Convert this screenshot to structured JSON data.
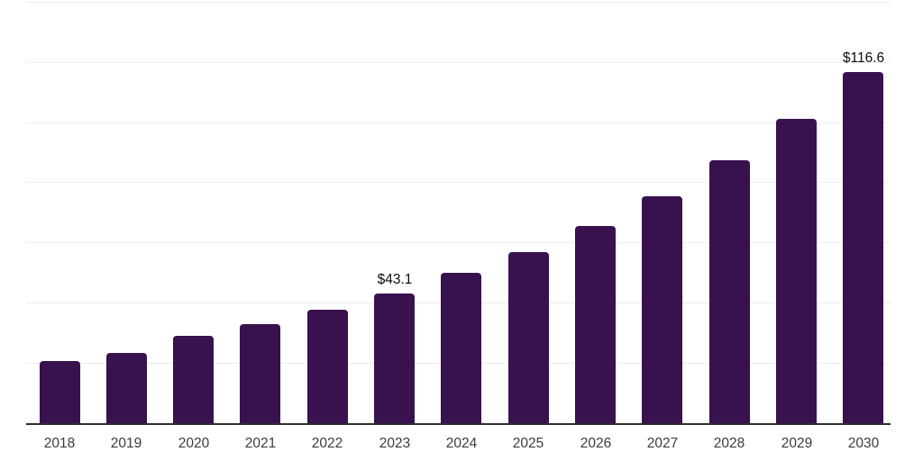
{
  "chart_data": {
    "type": "bar",
    "title": "",
    "categories": [
      "2018",
      "2019",
      "2020",
      "2021",
      "2022",
      "2023",
      "2024",
      "2025",
      "2026",
      "2027",
      "2028",
      "2029",
      "2030"
    ],
    "values": [
      20.6,
      23.3,
      29.0,
      33.0,
      37.7,
      43.1,
      50.0,
      56.9,
      65.5,
      75.4,
      87.3,
      101.1,
      116.6
    ],
    "data_labels": {
      "2023": "$43.1",
      "2030": "$116.6"
    },
    "currency_prefix": "$",
    "xlabel": "",
    "ylabel": "",
    "ylim": [
      0,
      140
    ],
    "gridline_step": 20,
    "grid": "horizontal gridlines only, no y-axis tick labels",
    "legend_position": "none",
    "colors": {
      "bar": "#38114E",
      "axis": "#2d2d2d",
      "gridline": "#ededed",
      "value_label": "#0c0c0c",
      "tick_label": "#3b3b3b",
      "background": "#ffffff"
    }
  }
}
